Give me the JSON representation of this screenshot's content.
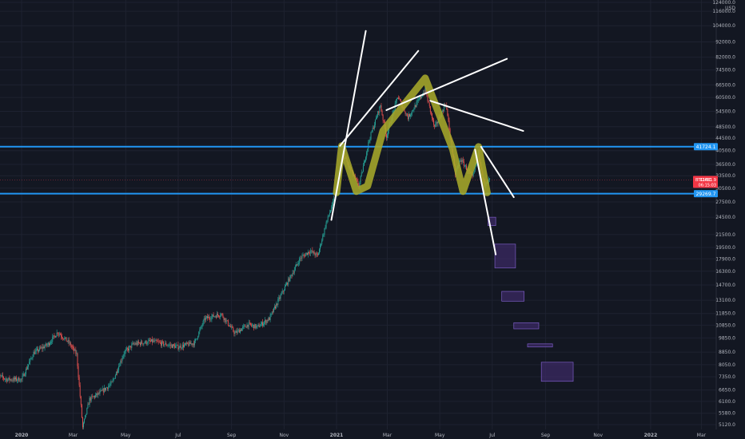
{
  "chart_data": {
    "type": "candlestick",
    "symbol": "BTCUSD",
    "currency": "USD",
    "y_scale": "log",
    "ylim": [
      5000,
      124000
    ],
    "x_ticks": [
      "2020",
      "Mar",
      "May",
      "Jul",
      "Sep",
      "Nov",
      "2021",
      "Mar",
      "May",
      "Jul",
      "Sep",
      "Nov",
      "2022",
      "Mar"
    ],
    "y_ticks": [
      {
        "value": 124000,
        "label": "124000.0"
      },
      {
        "value": 116000,
        "label": "116000.0"
      },
      {
        "value": 104000,
        "label": "104000.0"
      },
      {
        "value": 92000,
        "label": "92000.0"
      },
      {
        "value": 82000,
        "label": "82000.0"
      },
      {
        "value": 74500,
        "label": "74500.0"
      },
      {
        "value": 66500,
        "label": "66500.0"
      },
      {
        "value": 60500,
        "label": "60500.0"
      },
      {
        "value": 54500,
        "label": "54500.0"
      },
      {
        "value": 48500,
        "label": "48500.0"
      },
      {
        "value": 44500,
        "label": "44500.0"
      },
      {
        "value": 40500,
        "label": "40500.0"
      },
      {
        "value": 36500,
        "label": "36500.0"
      },
      {
        "value": 33500,
        "label": "33500.0"
      },
      {
        "value": 30500,
        "label": "30500.0"
      },
      {
        "value": 27500,
        "label": "27500.0"
      },
      {
        "value": 24500,
        "label": "24500.0"
      },
      {
        "value": 21500,
        "label": "21500.0"
      },
      {
        "value": 19500,
        "label": "19500.0"
      },
      {
        "value": 17900,
        "label": "17900.0"
      },
      {
        "value": 16300,
        "label": "16300.0"
      },
      {
        "value": 14700,
        "label": "14700.0"
      },
      {
        "value": 13100,
        "label": "13100.0"
      },
      {
        "value": 11850,
        "label": "11850.0"
      },
      {
        "value": 10850,
        "label": "10850.0"
      },
      {
        "value": 9850,
        "label": "9850.0"
      },
      {
        "value": 8850,
        "label": "8850.0"
      },
      {
        "value": 8050,
        "label": "8050.0"
      },
      {
        "value": 7350,
        "label": "7350.0"
      },
      {
        "value": 6650,
        "label": "6650.0"
      },
      {
        "value": 6100,
        "label": "6100.0"
      },
      {
        "value": 5580,
        "label": "5580.0"
      },
      {
        "value": 5120,
        "label": "5120.0"
      }
    ],
    "price_path": [
      [
        "2019-12-01",
        7500
      ],
      [
        "2019-12-15",
        7200
      ],
      [
        "2020-01-01",
        7200
      ],
      [
        "2020-01-15",
        8800
      ],
      [
        "2020-02-01",
        9400
      ],
      [
        "2020-02-12",
        10300
      ],
      [
        "2020-02-25",
        9500
      ],
      [
        "2020-03-05",
        8700
      ],
      [
        "2020-03-12",
        5000
      ],
      [
        "2020-03-20",
        6200
      ],
      [
        "2020-04-01",
        6500
      ],
      [
        "2020-04-15",
        7000
      ],
      [
        "2020-04-29",
        8800
      ],
      [
        "2020-05-10",
        9400
      ],
      [
        "2020-06-01",
        9600
      ],
      [
        "2020-06-15",
        9400
      ],
      [
        "2020-07-01",
        9200
      ],
      [
        "2020-07-20",
        9500
      ],
      [
        "2020-08-01",
        11400
      ],
      [
        "2020-08-20",
        11800
      ],
      [
        "2020-09-05",
        10200
      ],
      [
        "2020-09-20",
        10900
      ],
      [
        "2020-10-01",
        10700
      ],
      [
        "2020-10-15",
        11400
      ],
      [
        "2020-10-25",
        13000
      ],
      [
        "2020-11-05",
        15000
      ],
      [
        "2020-11-20",
        18000
      ],
      [
        "2020-12-01",
        19000
      ],
      [
        "2020-12-10",
        18300
      ],
      [
        "2020-12-20",
        23500
      ],
      [
        "2020-12-31",
        29000
      ],
      [
        "2021-01-08",
        40000
      ],
      [
        "2021-01-15",
        36000
      ],
      [
        "2021-01-27",
        31000
      ],
      [
        "2021-02-08",
        44000
      ],
      [
        "2021-02-21",
        57000
      ],
      [
        "2021-02-28",
        45000
      ],
      [
        "2021-03-13",
        61000
      ],
      [
        "2021-03-25",
        52000
      ],
      [
        "2021-04-14",
        64000
      ],
      [
        "2021-04-25",
        48000
      ],
      [
        "2021-05-08",
        58000
      ],
      [
        "2021-05-19",
        34000
      ],
      [
        "2021-05-25",
        38000
      ],
      [
        "2021-06-08",
        33000
      ],
      [
        "2021-06-15",
        40000
      ],
      [
        "2021-06-22",
        31000
      ],
      [
        "2021-06-28",
        32500
      ]
    ],
    "horizontal_levels": [
      {
        "value": 41724.1,
        "label": "41724.1",
        "color": "#2196f3"
      },
      {
        "value": 29269.7,
        "label": "29269.7",
        "color": "#2196f3"
      }
    ],
    "last_price": {
      "symbol_label": "BTCUSD",
      "value": 32481.9,
      "value_label": "32481.9",
      "countdown": "06:15:03",
      "color": "#f23645"
    },
    "pattern_overlay": {
      "description_hidden": true,
      "color": "#a6a82a",
      "points": [
        [
          "2021-01-01",
          29500
        ],
        [
          "2021-01-07",
          42000
        ],
        [
          "2021-01-24",
          29800
        ],
        [
          "2021-02-06",
          31000
        ],
        [
          "2021-02-24",
          47000
        ],
        [
          "2021-04-14",
          70000
        ],
        [
          "2021-05-16",
          41000
        ],
        [
          "2021-05-28",
          29800
        ],
        [
          "2021-06-15",
          41700
        ],
        [
          "2021-06-25",
          29500
        ]
      ]
    },
    "trend_lines": [
      {
        "from": [
          "2020-12-26",
          24000
        ],
        "to": [
          "2021-02-04",
          100000
        ]
      },
      {
        "from": [
          "2021-01-05",
          42000
        ],
        "to": [
          "2021-04-06",
          86000
        ]
      },
      {
        "from": [
          "2021-02-28",
          55000
        ],
        "to": [
          "2021-07-18",
          81000
        ]
      },
      {
        "from": [
          "2021-04-20",
          59000
        ],
        "to": [
          "2021-08-06",
          47000
        ]
      },
      {
        "from": [
          "2021-06-18",
          41700
        ],
        "to": [
          "2021-07-26",
          28500
        ]
      },
      {
        "from": [
          "2021-06-11",
          40800
        ],
        "to": [
          "2021-07-05",
          18500
        ]
      }
    ],
    "projection_boxes": [
      {
        "x0": "2021-06-26",
        "x1": "2021-07-05",
        "y_high": 24500,
        "y_low": 23000
      },
      {
        "x0": "2021-07-04",
        "x1": "2021-07-28",
        "y_high": 20000,
        "y_low": 16700
      },
      {
        "x0": "2021-07-12",
        "x1": "2021-08-07",
        "y_high": 14000,
        "y_low": 13000
      },
      {
        "x0": "2021-07-26",
        "x1": "2021-08-24",
        "y_high": 11050,
        "y_low": 10550
      },
      {
        "x0": "2021-08-11",
        "x1": "2021-09-09",
        "y_high": 9420,
        "y_low": 9200
      },
      {
        "x0": "2021-08-27",
        "x1": "2021-10-03",
        "y_high": 8200,
        "y_low": 7100
      }
    ]
  },
  "colors": {
    "background": "#131722",
    "grid": "#1e2230",
    "axis_text": "#b2b5be",
    "up": "#26a69a",
    "down": "#ef5350",
    "projection_fill": "#3b2a63",
    "projection_stroke": "#7b5cc4"
  }
}
